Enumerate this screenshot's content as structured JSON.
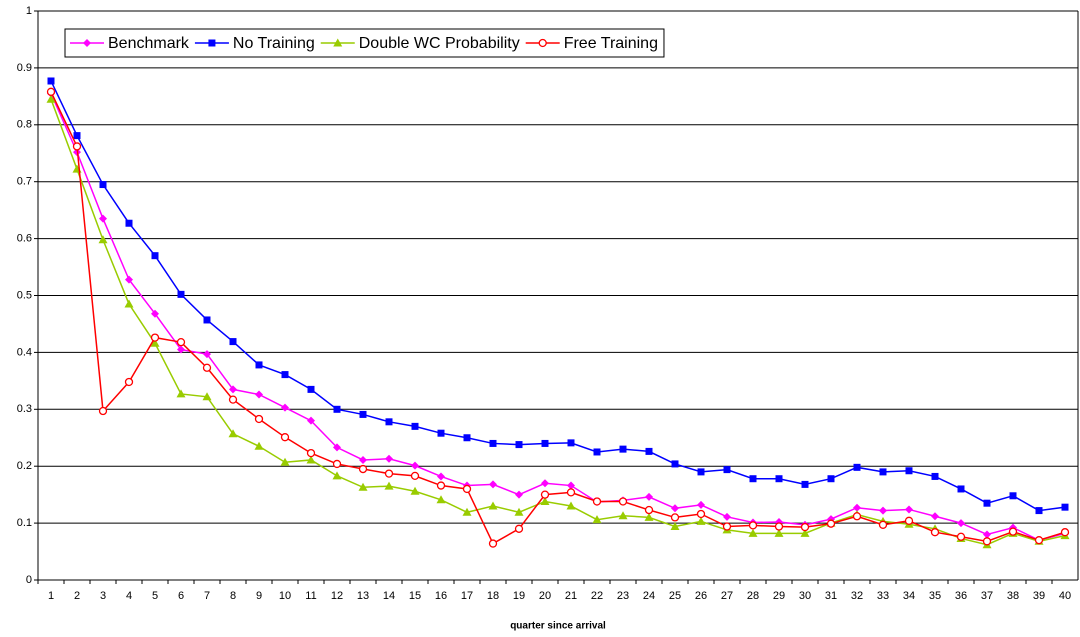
{
  "chart_data": {
    "type": "line",
    "x_label": "quarter since arrival",
    "categories": [
      1,
      2,
      3,
      4,
      5,
      6,
      7,
      8,
      9,
      10,
      11,
      12,
      13,
      14,
      15,
      16,
      17,
      18,
      19,
      20,
      21,
      22,
      23,
      24,
      25,
      26,
      27,
      28,
      29,
      30,
      31,
      32,
      33,
      34,
      35,
      36,
      37,
      38,
      39,
      40
    ],
    "ylim": [
      0,
      1
    ],
    "yticks": [
      0,
      0.1,
      0.2,
      0.3,
      0.4,
      0.5,
      0.6,
      0.7,
      0.8,
      0.9,
      1
    ],
    "grid": true,
    "legend": "top-left",
    "series": [
      {
        "name": "Benchmark",
        "color": "#ff00ff",
        "marker": "diamond",
        "values": [
          0.855,
          0.752,
          0.635,
          0.528,
          0.468,
          0.405,
          0.397,
          0.335,
          0.326,
          0.303,
          0.28,
          0.233,
          0.211,
          0.213,
          0.201,
          0.182,
          0.166,
          0.168,
          0.15,
          0.17,
          0.166,
          0.137,
          0.14,
          0.146,
          0.126,
          0.132,
          0.111,
          0.101,
          0.102,
          0.097,
          0.107,
          0.127,
          0.122,
          0.124,
          0.112,
          0.1,
          0.08,
          0.092,
          0.07,
          0.082
        ]
      },
      {
        "name": "No Training",
        "color": "#0000ff",
        "marker": "square",
        "values": [
          0.877,
          0.781,
          0.695,
          0.627,
          0.57,
          0.502,
          0.457,
          0.419,
          0.378,
          0.361,
          0.335,
          0.3,
          0.291,
          0.278,
          0.27,
          0.258,
          0.25,
          0.24,
          0.238,
          0.24,
          0.241,
          0.225,
          0.23,
          0.226,
          0.204,
          0.19,
          0.194,
          0.178,
          0.178,
          0.168,
          0.178,
          0.198,
          0.19,
          0.192,
          0.182,
          0.16,
          0.135,
          0.148,
          0.122,
          0.128
        ]
      },
      {
        "name": "Double WC Probability",
        "color": "#99cc00",
        "marker": "triangle",
        "values": [
          0.845,
          0.722,
          0.598,
          0.485,
          0.416,
          0.327,
          0.322,
          0.257,
          0.235,
          0.207,
          0.211,
          0.183,
          0.163,
          0.165,
          0.156,
          0.141,
          0.119,
          0.13,
          0.119,
          0.138,
          0.13,
          0.106,
          0.113,
          0.11,
          0.094,
          0.103,
          0.088,
          0.082,
          0.082,
          0.082,
          0.1,
          0.115,
          0.103,
          0.098,
          0.09,
          0.073,
          0.062,
          0.082,
          0.068,
          0.078
        ]
      },
      {
        "name": "Free Training",
        "color": "#ff0000",
        "marker": "circle",
        "values": [
          0.858,
          0.762,
          0.297,
          0.348,
          0.426,
          0.418,
          0.373,
          0.317,
          0.283,
          0.251,
          0.223,
          0.204,
          0.195,
          0.187,
          0.183,
          0.166,
          0.16,
          0.064,
          0.09,
          0.15,
          0.154,
          0.138,
          0.138,
          0.123,
          0.11,
          0.116,
          0.094,
          0.096,
          0.094,
          0.093,
          0.099,
          0.112,
          0.097,
          0.104,
          0.084,
          0.076,
          0.068,
          0.085,
          0.07,
          0.084
        ]
      }
    ]
  }
}
